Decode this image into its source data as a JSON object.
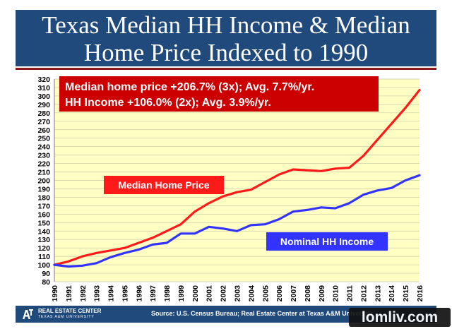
{
  "header": {
    "title_line1": "Texas Median HH Income & Median",
    "title_line2": "Home Price Indexed to 1990"
  },
  "colors": {
    "title_bg": "#204a7b",
    "plot_bg": "#ffffc4",
    "home_price": "#ff1a1a",
    "hh_income": "#3333ff",
    "callout_red": "#cc0000"
  },
  "chart_data": {
    "type": "line",
    "title": "Texas Median HH Income & Median Home Price Indexed to 1990",
    "xlabel": "",
    "ylabel": "",
    "ylim": [
      80,
      320
    ],
    "yticks": [
      80,
      90,
      100,
      110,
      120,
      130,
      140,
      150,
      160,
      170,
      180,
      190,
      200,
      210,
      220,
      230,
      240,
      250,
      260,
      270,
      280,
      290,
      300,
      310,
      320
    ],
    "grid": "horizontal",
    "categories": [
      "1990",
      "1991",
      "1992",
      "1993",
      "1994",
      "1995",
      "1996",
      "1997",
      "1998",
      "1999",
      "2000",
      "2001",
      "2002",
      "2003",
      "2004",
      "2005",
      "2006",
      "2007",
      "2008",
      "2009",
      "2010",
      "2011",
      "2012",
      "2013",
      "2014",
      "2015",
      "2016"
    ],
    "series": [
      {
        "name": "Median Home Price",
        "color": "#ff1a1a",
        "values": [
          100,
          104,
          110,
          114,
          117,
          120,
          126,
          132,
          140,
          148,
          163,
          173,
          181,
          186,
          189,
          198,
          207,
          213,
          212,
          211,
          214,
          215,
          229,
          248,
          267,
          286,
          307
        ]
      },
      {
        "name": "Nominal HH Income",
        "color": "#3333ff",
        "values": [
          100,
          98,
          99,
          102,
          109,
          114,
          118,
          124,
          126,
          137,
          137,
          145,
          143,
          140,
          147,
          148,
          154,
          163,
          165,
          168,
          167,
          173,
          183,
          188,
          191,
          200,
          206
        ]
      }
    ],
    "annotations": {
      "callout_line1": "Median home price +206.7% (3x); Avg. 7.7%/yr.",
      "callout_line2": "HH Income +106.0% (2x); Avg. 3.9%/yr."
    }
  },
  "footer": {
    "brand": "REAL ESTATE CENTER",
    "brand_sub": "TEXAS A&M UNIVERSITY",
    "source": "Source: U.S. Census Bureau; Real Estate Center at Texas A&M University"
  },
  "watermark": "lomliv.com"
}
